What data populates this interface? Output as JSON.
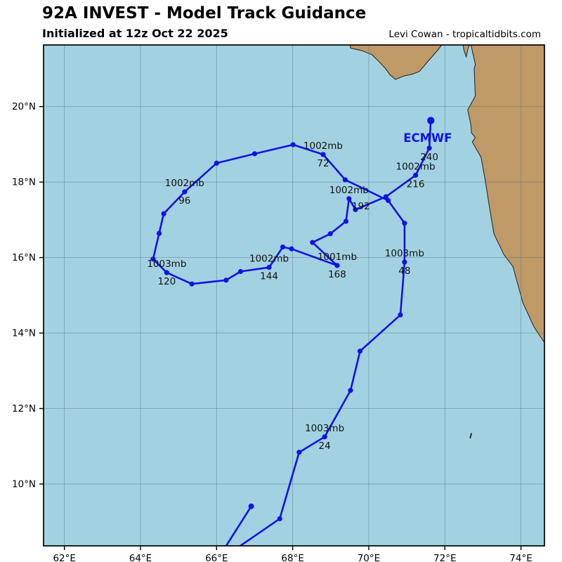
{
  "header": {
    "title": "92A INVEST - Model Track Guidance",
    "subtitle": "Initialized at 12z Oct 22 2025",
    "credit": "Levi Cowan - tropicaltidbits.com"
  },
  "map": {
    "extent": {
      "lon_min": 61.452,
      "lon_max": 74.617,
      "lat_min": 8.362,
      "lat_max": 21.632
    },
    "x_ticks": [
      {
        "v": 62,
        "label": "62°E"
      },
      {
        "v": 64,
        "label": "64°E"
      },
      {
        "v": 66,
        "label": "66°E"
      },
      {
        "v": 68,
        "label": "68°E"
      },
      {
        "v": 70,
        "label": "70°E"
      },
      {
        "v": 72,
        "label": "72°E"
      },
      {
        "v": 74,
        "label": "74°E"
      }
    ],
    "y_ticks": [
      {
        "v": 10,
        "label": "10°N"
      },
      {
        "v": 12,
        "label": "12°N"
      },
      {
        "v": 14,
        "label": "14°N"
      },
      {
        "v": 16,
        "label": "16°N"
      },
      {
        "v": 18,
        "label": "18°N"
      },
      {
        "v": 20,
        "label": "20°N"
      }
    ],
    "colors": {
      "ocean": "#A2D2E2",
      "land": "#BF9966",
      "coast": "#1f1f1f",
      "grid": "#5f7a85",
      "track": "#1212E6",
      "label_text": "#111111",
      "frame": "#000000"
    }
  },
  "land": {
    "polygons": [
      [
        [
          69.48,
          21.8
        ],
        [
          69.52,
          21.55
        ],
        [
          69.83,
          21.48
        ],
        [
          70.09,
          21.37
        ],
        [
          70.28,
          21.18
        ],
        [
          70.43,
          21.02
        ],
        [
          70.56,
          20.84
        ],
        [
          70.7,
          20.72
        ],
        [
          70.92,
          20.81
        ],
        [
          71.15,
          20.86
        ],
        [
          71.33,
          20.93
        ],
        [
          71.61,
          21.26
        ],
        [
          71.81,
          21.49
        ],
        [
          72.05,
          21.8
        ]
      ],
      [
        [
          72.46,
          21.8
        ],
        [
          72.5,
          21.5
        ],
        [
          72.56,
          21.32
        ],
        [
          72.62,
          21.58
        ],
        [
          72.68,
          21.66
        ],
        [
          72.8,
          21.12
        ],
        [
          72.77,
          21.0
        ],
        [
          72.8,
          20.28
        ],
        [
          72.6,
          19.91
        ],
        [
          72.68,
          19.54
        ],
        [
          72.7,
          19.3
        ],
        [
          72.8,
          19.18
        ],
        [
          72.72,
          19.06
        ],
        [
          72.95,
          18.66
        ],
        [
          73.06,
          18.05
        ],
        [
          73.17,
          17.35
        ],
        [
          73.29,
          16.63
        ],
        [
          73.55,
          16.08
        ],
        [
          73.79,
          15.76
        ],
        [
          74.05,
          14.8
        ],
        [
          74.35,
          14.15
        ],
        [
          74.62,
          13.74
        ],
        [
          75.1,
          13.74
        ],
        [
          75.1,
          21.8
        ]
      ]
    ],
    "islands": [
      {
        "lon": 72.68,
        "lat": 11.28
      }
    ]
  },
  "chart_data": {
    "type": "line",
    "model": "ECMWF",
    "model_label": {
      "text": "ECMWF",
      "lon": 71.55,
      "lat": 19.16
    },
    "track": [
      {
        "lon": 66.62,
        "lat": 8.36,
        "edge": true
      },
      {
        "lon": 67.66,
        "lat": 9.08
      },
      {
        "lon": 68.17,
        "lat": 10.84
      },
      {
        "lon": 68.84,
        "lat": 11.25,
        "hour": "24",
        "mb": "1003mb"
      },
      {
        "lon": 69.52,
        "lat": 12.48
      },
      {
        "lon": 69.77,
        "lat": 13.52
      },
      {
        "lon": 70.83,
        "lat": 14.48
      },
      {
        "lon": 70.94,
        "lat": 15.88,
        "hour": "48",
        "mb": "1003mb"
      },
      {
        "lon": 70.94,
        "lat": 16.91
      },
      {
        "lon": 70.51,
        "lat": 17.51
      },
      {
        "lon": 69.38,
        "lat": 18.06
      },
      {
        "lon": 68.8,
        "lat": 18.73,
        "hour": "72",
        "mb": "1002mb"
      },
      {
        "lon": 68.01,
        "lat": 18.99
      },
      {
        "lon": 67.0,
        "lat": 18.75
      },
      {
        "lon": 66.0,
        "lat": 18.5
      },
      {
        "lon": 65.16,
        "lat": 17.74,
        "hour": "96",
        "mb": "1002mb"
      },
      {
        "lon": 64.61,
        "lat": 17.16
      },
      {
        "lon": 64.49,
        "lat": 16.64
      },
      {
        "lon": 64.33,
        "lat": 15.96
      },
      {
        "lon": 64.69,
        "lat": 15.6,
        "hour": "120",
        "mb": "1003mb"
      },
      {
        "lon": 65.35,
        "lat": 15.3
      },
      {
        "lon": 66.25,
        "lat": 15.4
      },
      {
        "lon": 66.63,
        "lat": 15.63
      },
      {
        "lon": 67.38,
        "lat": 15.74,
        "hour": "144",
        "mb": "1002mb"
      },
      {
        "lon": 67.74,
        "lat": 16.28
      },
      {
        "lon": 67.97,
        "lat": 16.23
      },
      {
        "lon": 69.17,
        "lat": 15.79,
        "hour": "168",
        "mb": "1001mb"
      },
      {
        "lon": 68.52,
        "lat": 16.4
      },
      {
        "lon": 68.99,
        "lat": 16.63
      },
      {
        "lon": 69.4,
        "lat": 16.96
      },
      {
        "lon": 69.48,
        "lat": 17.56,
        "hour": "192",
        "mb": "1002mb",
        "hour_dx": 17,
        "hour_dy": 11
      },
      {
        "lon": 69.65,
        "lat": 17.27
      },
      {
        "lon": 70.45,
        "lat": 17.61
      },
      {
        "lon": 71.23,
        "lat": 18.18,
        "hour": "216",
        "mb": "1002mb"
      },
      {
        "lon": 71.59,
        "lat": 18.9,
        "hour": "240"
      },
      {
        "lon": 71.63,
        "lat": 19.63,
        "end": true
      }
    ],
    "spur": [
      {
        "lon": 66.25,
        "lat": 8.36,
        "edge": true
      },
      {
        "lon": 66.91,
        "lat": 9.41
      }
    ]
  }
}
